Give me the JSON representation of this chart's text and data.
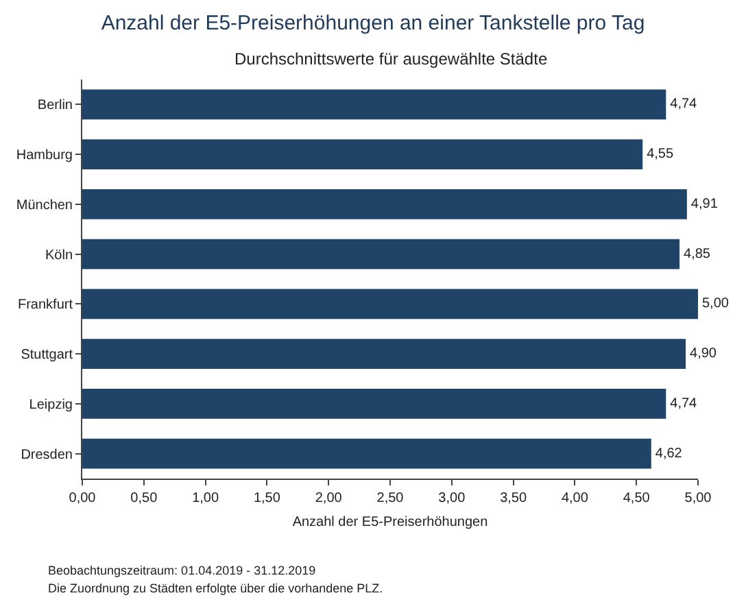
{
  "chart_data": {
    "type": "bar",
    "orientation": "horizontal",
    "title": "Anzahl der E5-Preiserhöhungen an einer Tankstelle pro Tag",
    "subtitle": "Durchschnittswerte für ausgewählte Städte",
    "xlabel": "Anzahl der E5-Preiserhöhungen",
    "categories": [
      "Berlin",
      "Hamburg",
      "München",
      "Köln",
      "Frankfurt",
      "Stuttgart",
      "Leipzig",
      "Dresden"
    ],
    "values": [
      4.74,
      4.55,
      4.91,
      4.85,
      5.0,
      4.9,
      4.74,
      4.62
    ],
    "value_labels": [
      "4,74",
      "4,55",
      "4,91",
      "4,85",
      "5,00",
      "4,90",
      "4,74",
      "4,62"
    ],
    "color": "#1f4468",
    "xlim": [
      0,
      5
    ],
    "xticks": [
      {
        "value": 0,
        "label": "0,00"
      },
      {
        "value": 0.5,
        "label": "0,50"
      },
      {
        "value": 1,
        "label": "1,00"
      },
      {
        "value": 1.5,
        "label": "1,50"
      },
      {
        "value": 2,
        "label": "2,00"
      },
      {
        "value": 2.5,
        "label": "2,50"
      },
      {
        "value": 3,
        "label": "3,00"
      },
      {
        "value": 3.5,
        "label": "3,50"
      },
      {
        "value": 4,
        "label": "4,00"
      },
      {
        "value": 4.5,
        "label": "4,50"
      },
      {
        "value": 5,
        "label": "5,00"
      }
    ],
    "grid": false,
    "annotations": [
      "Beobachtungszeitraum: 01.04.2019 - 31.12.2019",
      "Die Zuordnung zu Städten erfolgte über die vorhandene PLZ."
    ]
  }
}
